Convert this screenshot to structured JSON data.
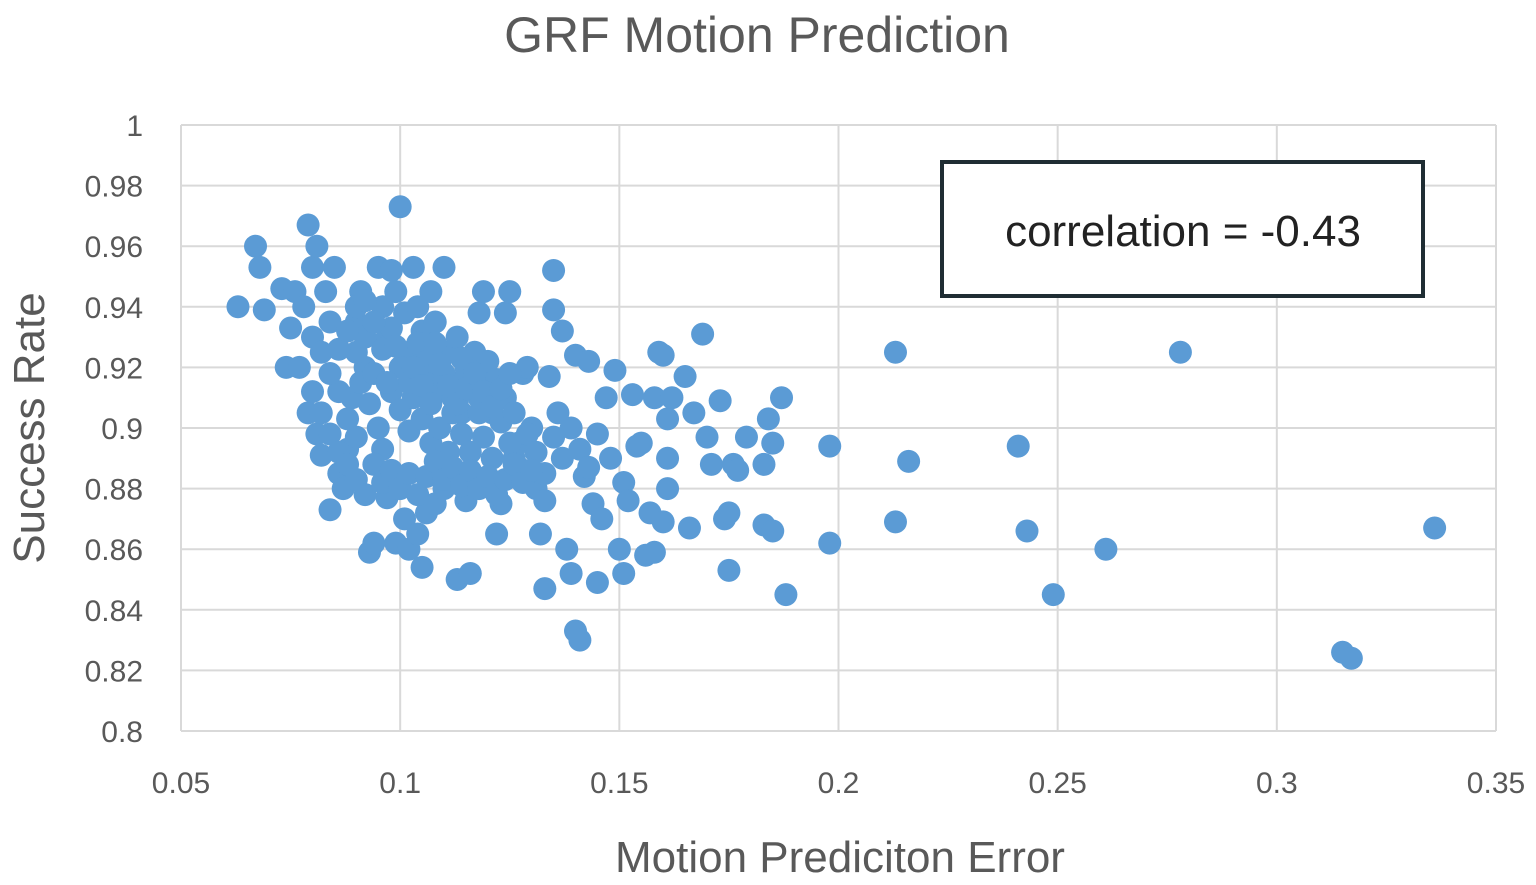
{
  "chart_data": {
    "type": "scatter",
    "title": "GRF Motion Prediction",
    "xlabel": "Motion Prediciton Error",
    "ylabel": "Success Rate",
    "xlim": [
      0.05,
      0.35
    ],
    "ylim": [
      0.8,
      1.0
    ],
    "x_ticks": [
      "0.05",
      "0.1",
      "0.15",
      "0.2",
      "0.25",
      "0.3",
      "0.35"
    ],
    "y_ticks": [
      "0.8",
      "0.82",
      "0.84",
      "0.86",
      "0.88",
      "0.9",
      "0.92",
      "0.94",
      "0.96",
      "0.98",
      "1"
    ],
    "grid": true,
    "legend": "none",
    "annotation": "correlation = -0.43",
    "marker_color": "#5b9bd5",
    "annotation_border_color": "#1f2d33",
    "points": [
      [
        0.063,
        0.94
      ],
      [
        0.067,
        0.96
      ],
      [
        0.068,
        0.953
      ],
      [
        0.069,
        0.939
      ],
      [
        0.073,
        0.946
      ],
      [
        0.074,
        0.92
      ],
      [
        0.075,
        0.933
      ],
      [
        0.076,
        0.945
      ],
      [
        0.077,
        0.92
      ],
      [
        0.078,
        0.94
      ],
      [
        0.079,
        0.967
      ],
      [
        0.08,
        0.953
      ],
      [
        0.081,
        0.96
      ],
      [
        0.08,
        0.93
      ],
      [
        0.079,
        0.905
      ],
      [
        0.081,
        0.898
      ],
      [
        0.082,
        0.891
      ],
      [
        0.083,
        0.945
      ],
      [
        0.084,
        0.935
      ],
      [
        0.085,
        0.953
      ],
      [
        0.084,
        0.873
      ],
      [
        0.086,
        0.885
      ],
      [
        0.087,
        0.88
      ],
      [
        0.088,
        0.893
      ],
      [
        0.089,
        0.91
      ],
      [
        0.09,
        0.935
      ],
      [
        0.091,
        0.945
      ],
      [
        0.092,
        0.92
      ],
      [
        0.093,
        0.859
      ],
      [
        0.094,
        0.862
      ],
      [
        0.095,
        0.953
      ],
      [
        0.096,
        0.94
      ],
      [
        0.097,
        0.93
      ],
      [
        0.098,
        0.952
      ],
      [
        0.099,
        0.945
      ],
      [
        0.1,
        0.973
      ],
      [
        0.101,
        0.938
      ],
      [
        0.102,
        0.925
      ],
      [
        0.103,
        0.953
      ],
      [
        0.104,
        0.94
      ],
      [
        0.105,
        0.932
      ],
      [
        0.106,
        0.918
      ],
      [
        0.107,
        0.945
      ],
      [
        0.108,
        0.935
      ],
      [
        0.11,
        0.953
      ],
      [
        0.111,
        0.925
      ],
      [
        0.112,
        0.915
      ],
      [
        0.113,
        0.93
      ],
      [
        0.114,
        0.905
      ],
      [
        0.115,
        0.92
      ],
      [
        0.097,
        0.877
      ],
      [
        0.099,
        0.862
      ],
      [
        0.101,
        0.87
      ],
      [
        0.102,
        0.86
      ],
      [
        0.104,
        0.865
      ],
      [
        0.105,
        0.854
      ],
      [
        0.106,
        0.872
      ],
      [
        0.108,
        0.875
      ],
      [
        0.11,
        0.88
      ],
      [
        0.113,
        0.85
      ],
      [
        0.115,
        0.876
      ],
      [
        0.116,
        0.852
      ],
      [
        0.117,
        0.925
      ],
      [
        0.118,
        0.938
      ],
      [
        0.119,
        0.945
      ],
      [
        0.12,
        0.915
      ],
      [
        0.121,
        0.905
      ],
      [
        0.122,
        0.865
      ],
      [
        0.123,
        0.875
      ],
      [
        0.124,
        0.938
      ],
      [
        0.125,
        0.945
      ],
      [
        0.126,
        0.89
      ],
      [
        0.127,
        0.895
      ],
      [
        0.128,
        0.918
      ],
      [
        0.129,
        0.92
      ],
      [
        0.13,
        0.9
      ],
      [
        0.131,
        0.88
      ],
      [
        0.132,
        0.865
      ],
      [
        0.133,
        0.876
      ],
      [
        0.133,
        0.847
      ],
      [
        0.134,
        0.917
      ],
      [
        0.135,
        0.952
      ],
      [
        0.135,
        0.939
      ],
      [
        0.136,
        0.905
      ],
      [
        0.137,
        0.932
      ],
      [
        0.138,
        0.86
      ],
      [
        0.139,
        0.852
      ],
      [
        0.14,
        0.924
      ],
      [
        0.14,
        0.833
      ],
      [
        0.141,
        0.83
      ],
      [
        0.142,
        0.884
      ],
      [
        0.143,
        0.922
      ],
      [
        0.144,
        0.875
      ],
      [
        0.145,
        0.849
      ],
      [
        0.146,
        0.87
      ],
      [
        0.147,
        0.91
      ],
      [
        0.148,
        0.89
      ],
      [
        0.149,
        0.919
      ],
      [
        0.15,
        0.86
      ],
      [
        0.151,
        0.852
      ],
      [
        0.151,
        0.882
      ],
      [
        0.152,
        0.876
      ],
      [
        0.153,
        0.911
      ],
      [
        0.154,
        0.894
      ],
      [
        0.155,
        0.895
      ],
      [
        0.156,
        0.858
      ],
      [
        0.157,
        0.872
      ],
      [
        0.158,
        0.859
      ],
      [
        0.158,
        0.91
      ],
      [
        0.159,
        0.925
      ],
      [
        0.16,
        0.924
      ],
      [
        0.16,
        0.869
      ],
      [
        0.161,
        0.88
      ],
      [
        0.161,
        0.903
      ],
      [
        0.161,
        0.89
      ],
      [
        0.162,
        0.91
      ],
      [
        0.165,
        0.917
      ],
      [
        0.166,
        0.867
      ],
      [
        0.167,
        0.905
      ],
      [
        0.169,
        0.931
      ],
      [
        0.17,
        0.897
      ],
      [
        0.171,
        0.888
      ],
      [
        0.173,
        0.909
      ],
      [
        0.174,
        0.87
      ],
      [
        0.175,
        0.853
      ],
      [
        0.175,
        0.872
      ],
      [
        0.176,
        0.888
      ],
      [
        0.177,
        0.886
      ],
      [
        0.179,
        0.897
      ],
      [
        0.183,
        0.888
      ],
      [
        0.183,
        0.868
      ],
      [
        0.184,
        0.903
      ],
      [
        0.185,
        0.866
      ],
      [
        0.185,
        0.895
      ],
      [
        0.187,
        0.91
      ],
      [
        0.188,
        0.845
      ],
      [
        0.198,
        0.894
      ],
      [
        0.198,
        0.862
      ],
      [
        0.213,
        0.925
      ],
      [
        0.213,
        0.869
      ],
      [
        0.216,
        0.889
      ],
      [
        0.241,
        0.894
      ],
      [
        0.243,
        0.866
      ],
      [
        0.249,
        0.845
      ],
      [
        0.261,
        0.86
      ],
      [
        0.278,
        0.925
      ],
      [
        0.315,
        0.826
      ],
      [
        0.317,
        0.824
      ],
      [
        0.336,
        0.867
      ],
      [
        0.086,
        0.912
      ],
      [
        0.088,
        0.903
      ],
      [
        0.09,
        0.897
      ],
      [
        0.091,
        0.915
      ],
      [
        0.093,
        0.908
      ],
      [
        0.095,
        0.9
      ],
      [
        0.096,
        0.893
      ],
      [
        0.098,
        0.912
      ],
      [
        0.1,
        0.906
      ],
      [
        0.102,
        0.899
      ],
      [
        0.103,
        0.91
      ],
      [
        0.105,
        0.903
      ],
      [
        0.107,
        0.895
      ],
      [
        0.108,
        0.912
      ],
      [
        0.109,
        0.9
      ],
      [
        0.111,
        0.892
      ],
      [
        0.112,
        0.905
      ],
      [
        0.114,
        0.898
      ],
      [
        0.116,
        0.892
      ],
      [
        0.118,
        0.905
      ],
      [
        0.119,
        0.897
      ],
      [
        0.121,
        0.89
      ],
      [
        0.123,
        0.902
      ],
      [
        0.125,
        0.895
      ],
      [
        0.127,
        0.887
      ],
      [
        0.129,
        0.898
      ],
      [
        0.131,
        0.892
      ],
      [
        0.133,
        0.885
      ],
      [
        0.135,
        0.897
      ],
      [
        0.137,
        0.89
      ],
      [
        0.139,
        0.9
      ],
      [
        0.141,
        0.893
      ],
      [
        0.143,
        0.887
      ],
      [
        0.145,
        0.898
      ],
      [
        0.09,
        0.925
      ],
      [
        0.092,
        0.93
      ],
      [
        0.094,
        0.918
      ],
      [
        0.096,
        0.926
      ],
      [
        0.098,
        0.933
      ],
      [
        0.1,
        0.92
      ],
      [
        0.102,
        0.915
      ],
      [
        0.104,
        0.928
      ],
      [
        0.106,
        0.922
      ],
      [
        0.108,
        0.928
      ],
      [
        0.11,
        0.918
      ],
      [
        0.112,
        0.91
      ],
      [
        0.114,
        0.923
      ],
      [
        0.116,
        0.916
      ],
      [
        0.118,
        0.91
      ],
      [
        0.12,
        0.922
      ],
      [
        0.122,
        0.916
      ],
      [
        0.124,
        0.91
      ],
      [
        0.126,
        0.905
      ],
      [
        0.082,
        0.925
      ],
      [
        0.084,
        0.918
      ],
      [
        0.086,
        0.926
      ],
      [
        0.088,
        0.932
      ],
      [
        0.09,
        0.94
      ],
      [
        0.092,
        0.942
      ],
      [
        0.094,
        0.935
      ],
      [
        0.08,
        0.912
      ],
      [
        0.082,
        0.905
      ],
      [
        0.084,
        0.898
      ],
      [
        0.086,
        0.892
      ],
      [
        0.088,
        0.888
      ],
      [
        0.09,
        0.883
      ],
      [
        0.092,
        0.878
      ],
      [
        0.094,
        0.888
      ],
      [
        0.096,
        0.882
      ],
      [
        0.098,
        0.886
      ],
      [
        0.1,
        0.88
      ],
      [
        0.102,
        0.885
      ],
      [
        0.104,
        0.878
      ],
      [
        0.106,
        0.884
      ],
      [
        0.108,
        0.889
      ],
      [
        0.11,
        0.883
      ],
      [
        0.112,
        0.887
      ],
      [
        0.114,
        0.881
      ],
      [
        0.116,
        0.886
      ],
      [
        0.118,
        0.88
      ],
      [
        0.12,
        0.884
      ],
      [
        0.122,
        0.878
      ],
      [
        0.124,
        0.883
      ],
      [
        0.126,
        0.888
      ],
      [
        0.128,
        0.882
      ],
      [
        0.13,
        0.886
      ],
      [
        0.097,
        0.915
      ],
      [
        0.099,
        0.927
      ],
      [
        0.103,
        0.92
      ],
      [
        0.105,
        0.914
      ],
      [
        0.107,
        0.908
      ],
      [
        0.109,
        0.921
      ],
      [
        0.111,
        0.914
      ],
      [
        0.113,
        0.908
      ],
      [
        0.115,
        0.913
      ],
      [
        0.117,
        0.918
      ],
      [
        0.119,
        0.912
      ],
      [
        0.121,
        0.907
      ],
      [
        0.123,
        0.913
      ],
      [
        0.125,
        0.918
      ]
    ]
  }
}
